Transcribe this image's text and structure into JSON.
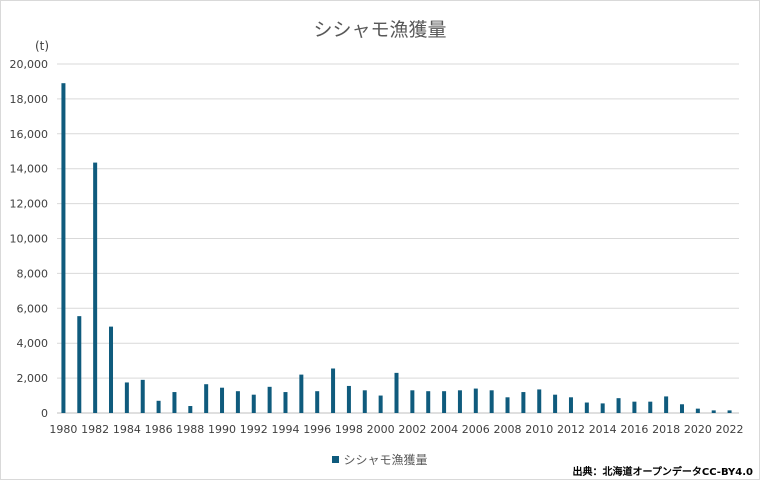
{
  "title": "シシャモ漁獲量",
  "unit_label": "(t)",
  "source_note": "出典：北海道オープンデータCC-BY4.0",
  "colors": {
    "bar": "#0f5b7d",
    "grid": "#d9d9d9"
  },
  "chart_data": {
    "type": "bar",
    "title": "シシャモ漁獲量",
    "ylabel": "(t)",
    "xlabel": "",
    "ylim": [
      0,
      20000
    ],
    "y_ticks": [
      "0",
      "2,000",
      "4,000",
      "6,000",
      "8,000",
      "10,000",
      "12,000",
      "14,000",
      "16,000",
      "18,000",
      "20,000"
    ],
    "x_tick_labels": [
      "1980",
      "1982",
      "1984",
      "1986",
      "1988",
      "1990",
      "1992",
      "1994",
      "1996",
      "1998",
      "2000",
      "2002",
      "2004",
      "2006",
      "2008",
      "2010",
      "2012",
      "2014",
      "2016",
      "2018",
      "2020",
      "2022"
    ],
    "grid": true,
    "legend": "bottom",
    "categories": [
      "1980",
      "1981",
      "1982",
      "1983",
      "1984",
      "1985",
      "1986",
      "1987",
      "1988",
      "1989",
      "1990",
      "1991",
      "1992",
      "1993",
      "1994",
      "1995",
      "1996",
      "1997",
      "1998",
      "1999",
      "2000",
      "2001",
      "2002",
      "2003",
      "2004",
      "2005",
      "2006",
      "2007",
      "2008",
      "2009",
      "2010",
      "2011",
      "2012",
      "2013",
      "2014",
      "2015",
      "2016",
      "2017",
      "2018",
      "2019",
      "2020",
      "2021",
      "2022"
    ],
    "series": [
      {
        "name": "シシャモ漁獲量",
        "values": [
          18900,
          5550,
          14350,
          4950,
          1750,
          1900,
          700,
          1200,
          400,
          1650,
          1450,
          1250,
          1050,
          1500,
          1200,
          2200,
          1250,
          2550,
          1550,
          1300,
          1000,
          2300,
          1300,
          1250,
          1250,
          1300,
          1400,
          1300,
          900,
          1200,
          1350,
          1050,
          900,
          600,
          550,
          850,
          650,
          650,
          950,
          500,
          250,
          150,
          150
        ]
      }
    ]
  }
}
